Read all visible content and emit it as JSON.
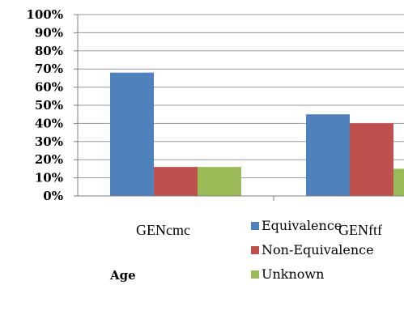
{
  "chart_data": {
    "type": "bar",
    "categories": [
      "GENcmc",
      "GENftf"
    ],
    "series": [
      {
        "name": "Equivalence",
        "values": [
          68,
          45
        ],
        "color": "#4F81BD"
      },
      {
        "name": "Non-Equivalence",
        "values": [
          16,
          40
        ],
        "color": "#C0504D"
      },
      {
        "name": "Unknown",
        "values": [
          16,
          15
        ],
        "color": "#9BBB59"
      }
    ],
    "xlabel": "Age",
    "ylabel": "",
    "ylim": [
      0,
      100
    ],
    "y_ticks": [
      "0%",
      "10%",
      "20%",
      "30%",
      "40%",
      "50%",
      "60%",
      "70%",
      "80%",
      "90%",
      "100%"
    ],
    "grid": true,
    "legend_position": "bottom-right"
  }
}
